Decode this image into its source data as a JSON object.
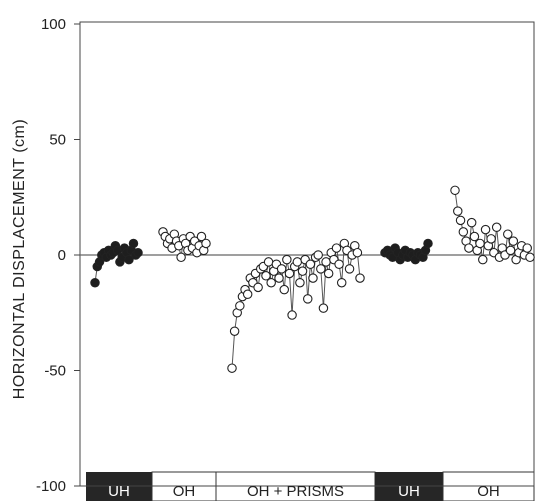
{
  "chart_data": {
    "type": "scatter",
    "title": "",
    "xlabel": "",
    "ylabel": "HORIZONTAL DISPLACEMENT (cm)",
    "ylim": [
      -100,
      100
    ],
    "y_ticks": [
      100,
      50,
      0,
      -50,
      -100
    ],
    "grid": false,
    "zero_line": true,
    "conditions": [
      {
        "label": "UH",
        "style": "dark",
        "point_fill": "filled"
      },
      {
        "label": "OH",
        "style": "light",
        "point_fill": "open"
      },
      {
        "label": "OH + PRISMS",
        "style": "light",
        "point_fill": "open"
      },
      {
        "label": "UH",
        "style": "dark",
        "point_fill": "filled"
      },
      {
        "label": "OH",
        "style": "light",
        "point_fill": "open"
      }
    ],
    "series": [
      {
        "condition": 0,
        "values": [
          -12,
          -5,
          -3,
          0,
          1,
          -1,
          2,
          0,
          1,
          4,
          2,
          -3,
          -1,
          3,
          1,
          -2,
          2,
          5,
          0,
          1
        ]
      },
      {
        "condition": 1,
        "values": [
          10,
          8,
          5,
          7,
          3,
          9,
          6,
          4,
          -1,
          7,
          5,
          2,
          8,
          3,
          6,
          1,
          4,
          8,
          2,
          5
        ]
      },
      {
        "condition": 2,
        "values": [
          -49,
          -33,
          -25,
          -22,
          -18,
          -15,
          -17,
          -10,
          -12,
          -8,
          -14,
          -6,
          -5,
          -9,
          -3,
          -12,
          -7,
          -4,
          -10,
          -6,
          -15,
          -2,
          -8,
          -26,
          -5,
          -3,
          -12,
          -7,
          -2,
          -19,
          -4,
          -10,
          -1,
          0,
          -6,
          -23,
          -3,
          -8,
          1,
          -2,
          3,
          -4,
          -12,
          5,
          2,
          -6,
          0,
          4,
          1,
          -10
        ]
      },
      {
        "condition": 3,
        "values": [
          1,
          2,
          0,
          -1,
          3,
          1,
          -2,
          0,
          2,
          -1,
          1,
          0,
          -2,
          1,
          0,
          -1,
          2,
          5
        ]
      },
      {
        "condition": 4,
        "values": [
          28,
          19,
          15,
          10,
          6,
          3,
          14,
          8,
          2,
          5,
          -2,
          11,
          4,
          7,
          1,
          12,
          -1,
          3,
          0,
          9,
          2,
          6,
          -2,
          1,
          4,
          0,
          3,
          -1
        ]
      }
    ]
  }
}
